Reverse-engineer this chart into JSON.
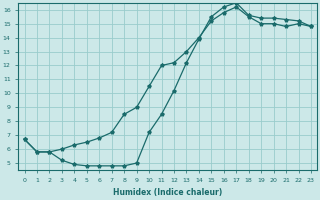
{
  "xlabel": "Humidex (Indice chaleur)",
  "ylabel": "",
  "xlim": [
    -0.5,
    23.5
  ],
  "ylim": [
    4.5,
    16.5
  ],
  "xticks": [
    0,
    1,
    2,
    3,
    4,
    5,
    6,
    7,
    8,
    9,
    10,
    11,
    12,
    13,
    14,
    15,
    16,
    17,
    18,
    19,
    20,
    21,
    22,
    23
  ],
  "yticks": [
    5,
    6,
    7,
    8,
    9,
    10,
    11,
    12,
    13,
    14,
    15,
    16
  ],
  "background_color": "#cce8e8",
  "grid_color": "#99cccc",
  "line_color": "#1a6b6b",
  "curve1_x": [
    0,
    1,
    2,
    3,
    4,
    5,
    6,
    7,
    8,
    9,
    10,
    11,
    12,
    13,
    14,
    15,
    16,
    17,
    18,
    19,
    20,
    21,
    22,
    23
  ],
  "curve1_y": [
    6.7,
    5.8,
    5.8,
    5.2,
    4.9,
    4.8,
    4.8,
    4.8,
    4.8,
    5.0,
    7.2,
    8.5,
    10.2,
    12.2,
    13.9,
    15.5,
    16.2,
    16.5,
    15.6,
    15.4,
    15.4,
    15.3,
    15.2,
    14.8
  ],
  "curve2_x": [
    0,
    1,
    2,
    3,
    4,
    5,
    6,
    7,
    8,
    9,
    10,
    11,
    12,
    13,
    14,
    15,
    16,
    17,
    18,
    19,
    20,
    21,
    22,
    23
  ],
  "curve2_y": [
    6.7,
    5.8,
    5.8,
    6.0,
    6.3,
    6.5,
    6.8,
    7.2,
    8.5,
    9.0,
    10.5,
    12.0,
    12.2,
    13.0,
    14.0,
    15.2,
    15.8,
    16.2,
    15.5,
    15.0,
    15.0,
    14.8,
    15.0,
    14.8
  ]
}
